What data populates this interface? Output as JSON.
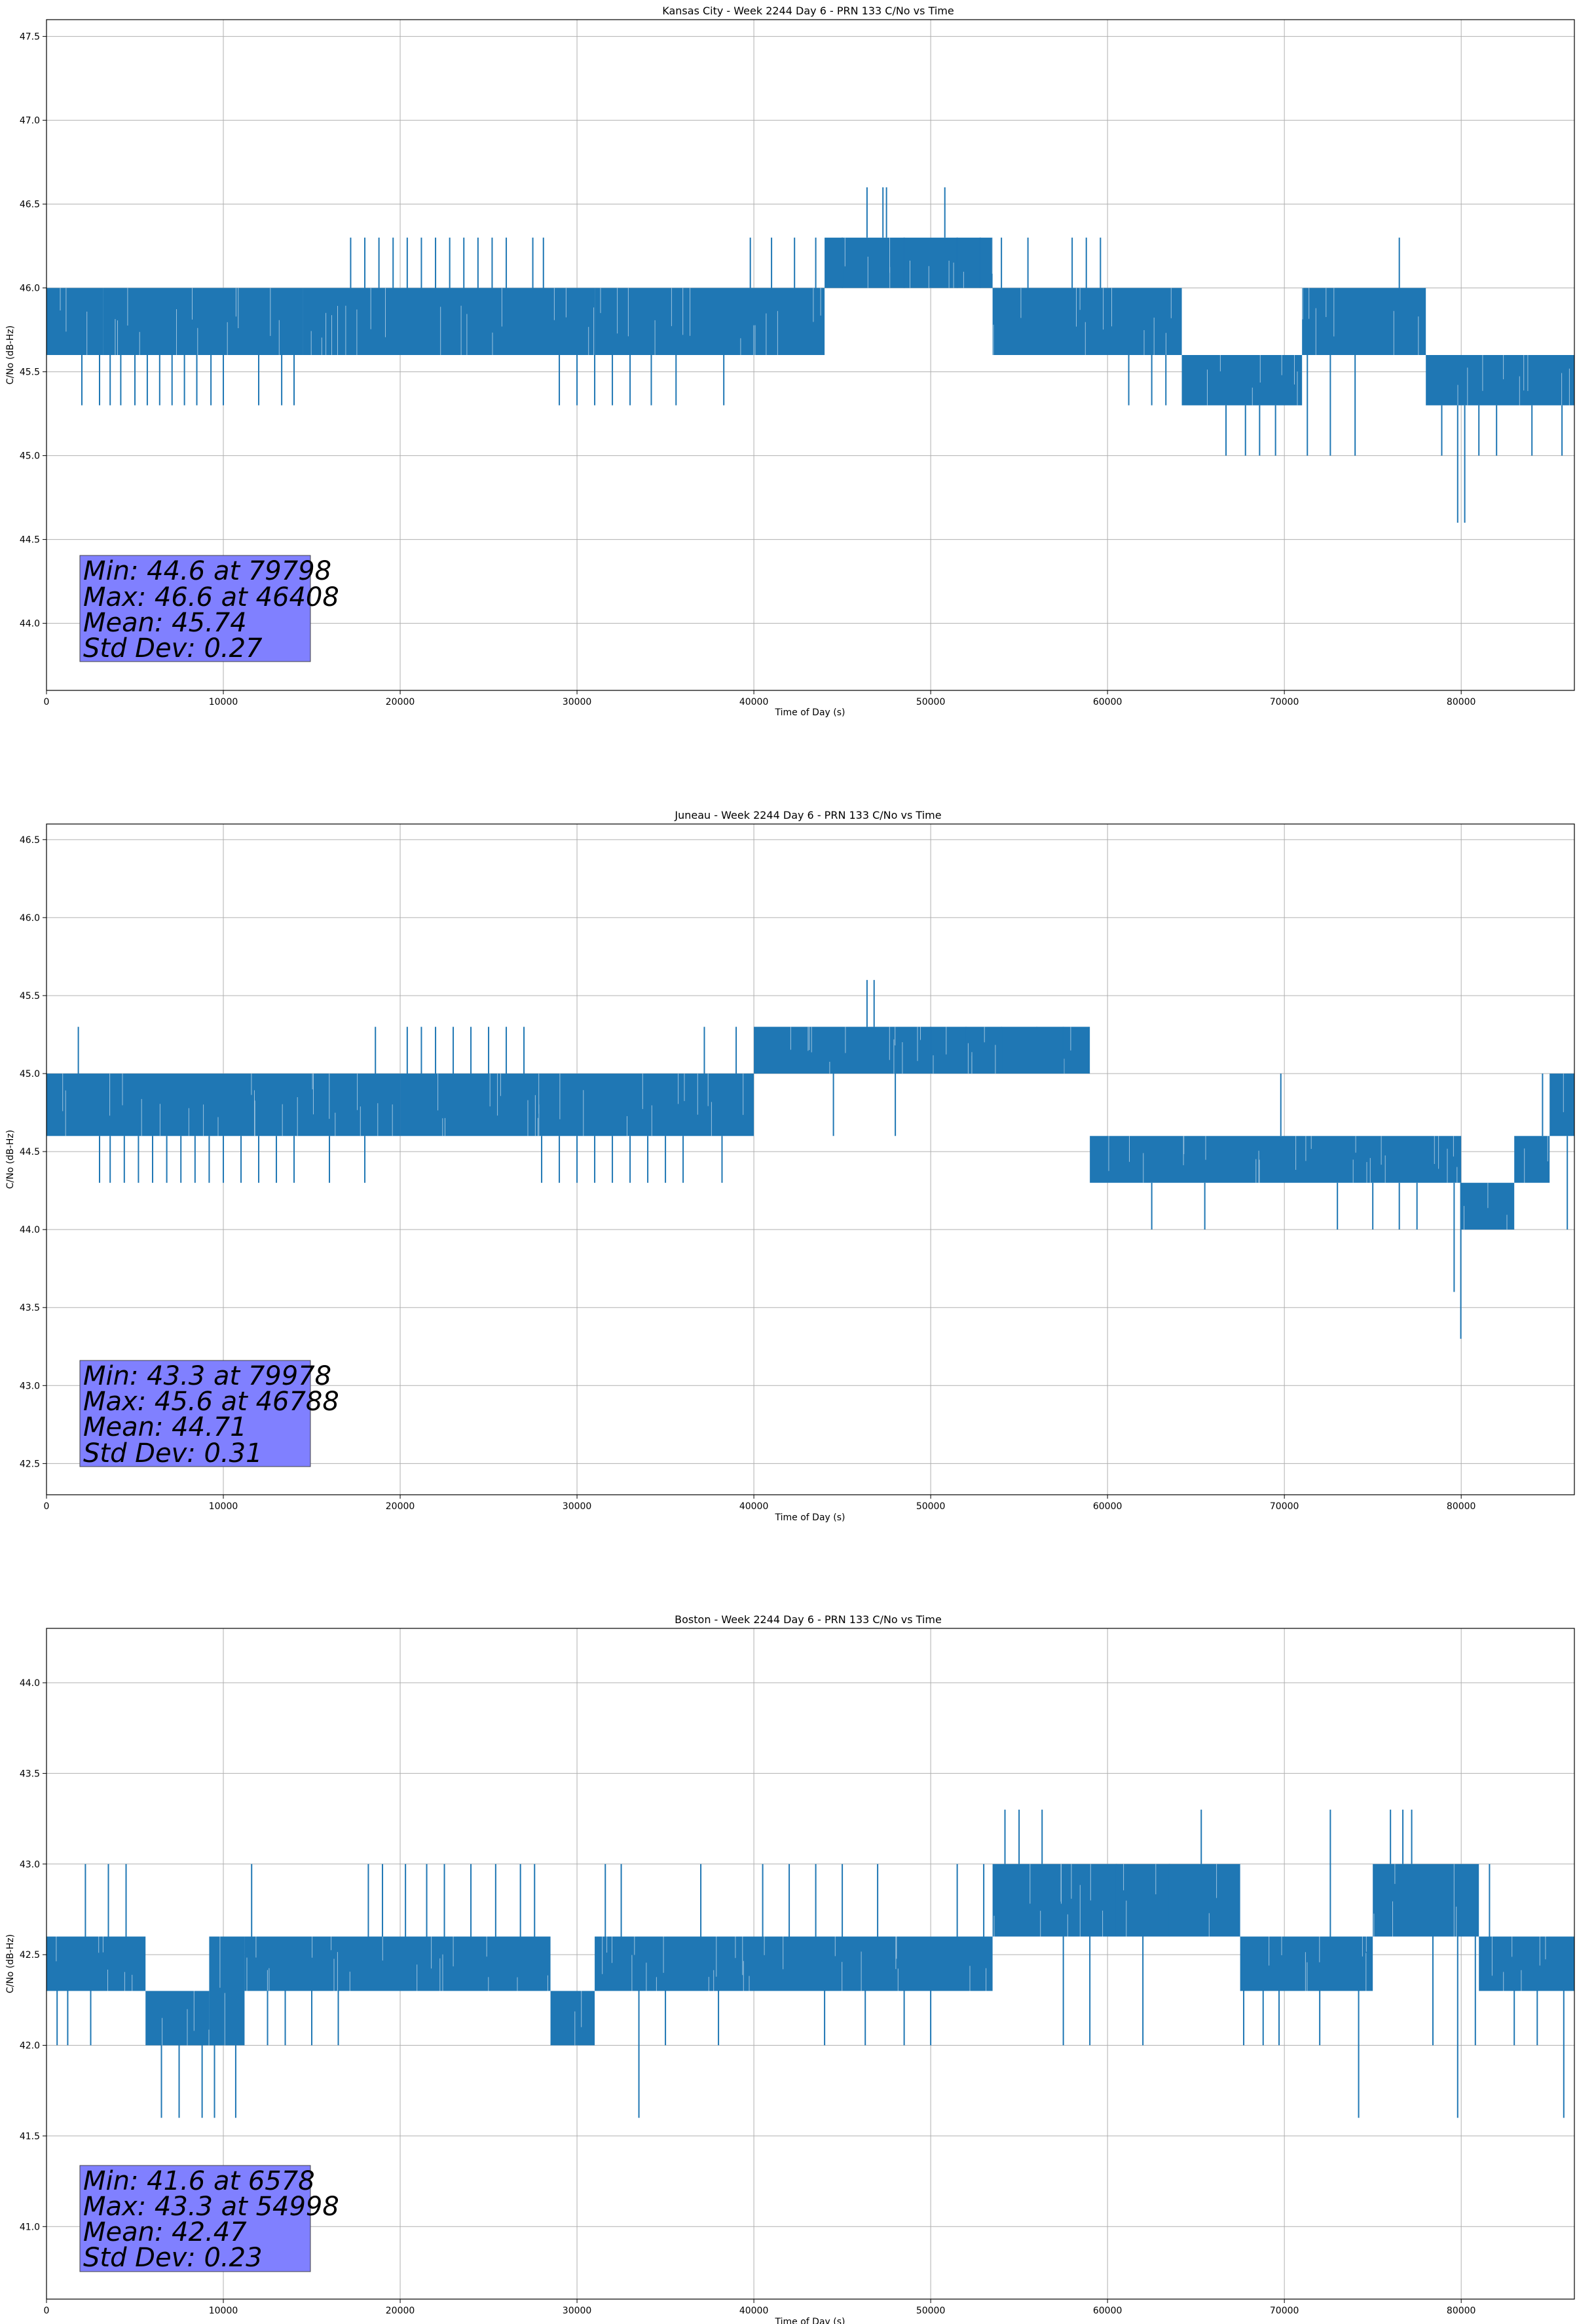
{
  "chart_data": [
    {
      "type": "line",
      "title": "Kansas City - Week 2244 Day 6 - PRN 133 C/No vs Time",
      "xlabel": "Time of Day (s)",
      "ylabel": "C/No (dB-Hz)",
      "xlim": [
        0,
        86400
      ],
      "ylim": [
        43.6,
        47.6
      ],
      "xticks": [
        0,
        10000,
        20000,
        30000,
        40000,
        50000,
        60000,
        70000,
        80000
      ],
      "yticks": [
        44.0,
        44.5,
        45.0,
        45.5,
        46.0,
        46.5,
        47.0,
        47.5
      ],
      "xtick_labels": [
        "0",
        "10000",
        "20000",
        "30000",
        "40000",
        "50000",
        "60000",
        "70000",
        "80000"
      ],
      "ytick_labels": [
        "44.0",
        "44.5",
        "45.0",
        "45.5",
        "46.0",
        "46.5",
        "47.0",
        "47.5"
      ],
      "grid": true,
      "color": "#1f77b4",
      "band_segments": [
        {
          "start": 0,
          "end": 3200,
          "lo": 45.6,
          "hi": 46.0
        },
        {
          "start": 3200,
          "end": 14500,
          "lo": 45.6,
          "hi": 46.0
        },
        {
          "start": 14500,
          "end": 31000,
          "lo": 45.6,
          "hi": 46.0
        },
        {
          "start": 31000,
          "end": 44000,
          "lo": 45.6,
          "hi": 46.0
        },
        {
          "start": 44000,
          "end": 53500,
          "lo": 46.0,
          "hi": 46.3
        },
        {
          "start": 53500,
          "end": 64200,
          "lo": 45.6,
          "hi": 46.0
        },
        {
          "start": 64200,
          "end": 71000,
          "lo": 45.3,
          "hi": 45.6
        },
        {
          "start": 71000,
          "end": 78000,
          "lo": 45.6,
          "hi": 46.0
        },
        {
          "start": 78000,
          "end": 86400,
          "lo": 45.3,
          "hi": 45.6
        }
      ],
      "spikes": [
        {
          "x": 2000,
          "y": 45.3
        },
        {
          "x": 3000,
          "y": 45.3
        },
        {
          "x": 3600,
          "y": 45.3
        },
        {
          "x": 4200,
          "y": 45.3
        },
        {
          "x": 5000,
          "y": 45.3
        },
        {
          "x": 5700,
          "y": 45.3
        },
        {
          "x": 6400,
          "y": 45.3
        },
        {
          "x": 7100,
          "y": 45.3
        },
        {
          "x": 7800,
          "y": 45.3
        },
        {
          "x": 8500,
          "y": 45.3
        },
        {
          "x": 9300,
          "y": 45.3
        },
        {
          "x": 10000,
          "y": 45.3
        },
        {
          "x": 12000,
          "y": 45.3
        },
        {
          "x": 13300,
          "y": 45.3
        },
        {
          "x": 14000,
          "y": 45.3
        },
        {
          "x": 17200,
          "y": 46.3
        },
        {
          "x": 18000,
          "y": 46.3
        },
        {
          "x": 18800,
          "y": 46.3
        },
        {
          "x": 19600,
          "y": 46.3
        },
        {
          "x": 20400,
          "y": 46.3
        },
        {
          "x": 21200,
          "y": 46.3
        },
        {
          "x": 22000,
          "y": 46.3
        },
        {
          "x": 22800,
          "y": 46.3
        },
        {
          "x": 23600,
          "y": 46.3
        },
        {
          "x": 24400,
          "y": 46.3
        },
        {
          "x": 25200,
          "y": 46.3
        },
        {
          "x": 26000,
          "y": 46.3
        },
        {
          "x": 27500,
          "y": 46.3
        },
        {
          "x": 28100,
          "y": 46.3
        },
        {
          "x": 29000,
          "y": 45.3
        },
        {
          "x": 30000,
          "y": 45.3
        },
        {
          "x": 31000,
          "y": 45.3
        },
        {
          "x": 32000,
          "y": 45.3
        },
        {
          "x": 33000,
          "y": 45.3
        },
        {
          "x": 34200,
          "y": 45.3
        },
        {
          "x": 35600,
          "y": 45.3
        },
        {
          "x": 38300,
          "y": 45.3
        },
        {
          "x": 39800,
          "y": 46.3
        },
        {
          "x": 41000,
          "y": 46.3
        },
        {
          "x": 42300,
          "y": 46.3
        },
        {
          "x": 43500,
          "y": 46.3
        },
        {
          "x": 45000,
          "y": 46.3
        },
        {
          "x": 46400,
          "y": 46.6
        },
        {
          "x": 47300,
          "y": 46.6
        },
        {
          "x": 47500,
          "y": 46.6
        },
        {
          "x": 48500,
          "y": 46.3
        },
        {
          "x": 50800,
          "y": 46.6
        },
        {
          "x": 51500,
          "y": 46.3
        },
        {
          "x": 52800,
          "y": 46.3
        },
        {
          "x": 54000,
          "y": 46.3
        },
        {
          "x": 55500,
          "y": 46.3
        },
        {
          "x": 58000,
          "y": 46.3
        },
        {
          "x": 58800,
          "y": 46.3
        },
        {
          "x": 59600,
          "y": 46.3
        },
        {
          "x": 61200,
          "y": 45.3
        },
        {
          "x": 62500,
          "y": 45.3
        },
        {
          "x": 63300,
          "y": 45.3
        },
        {
          "x": 66700,
          "y": 45.0
        },
        {
          "x": 67800,
          "y": 45.0
        },
        {
          "x": 68600,
          "y": 45.0
        },
        {
          "x": 69500,
          "y": 45.0
        },
        {
          "x": 71300,
          "y": 45.0
        },
        {
          "x": 72600,
          "y": 45.0
        },
        {
          "x": 74000,
          "y": 45.0
        },
        {
          "x": 76500,
          "y": 46.3
        },
        {
          "x": 78900,
          "y": 45.0
        },
        {
          "x": 79800,
          "y": 44.6
        },
        {
          "x": 80200,
          "y": 44.6
        },
        {
          "x": 81000,
          "y": 45.0
        },
        {
          "x": 82000,
          "y": 45.0
        },
        {
          "x": 84000,
          "y": 45.0
        },
        {
          "x": 85700,
          "y": 45.0
        }
      ],
      "stats": {
        "min": "Min: 44.6 at 79798",
        "max": "Max: 46.6 at 46408",
        "mean": "Mean: 45.74",
        "std": "Std Dev: 0.27"
      },
      "stats_box_color": "#8080ff"
    },
    {
      "type": "line",
      "title": "Juneau - Week 2244 Day 6 - PRN 133 C/No vs Time",
      "xlabel": "Time of Day (s)",
      "ylabel": "C/No (dB-Hz)",
      "xlim": [
        0,
        86400
      ],
      "ylim": [
        42.3,
        46.6
      ],
      "xticks": [
        0,
        10000,
        20000,
        30000,
        40000,
        50000,
        60000,
        70000,
        80000
      ],
      "yticks": [
        42.5,
        43.0,
        43.5,
        44.0,
        44.5,
        45.0,
        45.5,
        46.0,
        46.5
      ],
      "xtick_labels": [
        "0",
        "10000",
        "20000",
        "30000",
        "40000",
        "50000",
        "60000",
        "70000",
        "80000"
      ],
      "ytick_labels": [
        "42.5",
        "43.0",
        "43.5",
        "44.0",
        "44.5",
        "45.0",
        "45.5",
        "46.0",
        "46.5"
      ],
      "grid": true,
      "color": "#1f77b4",
      "band_segments": [
        {
          "start": 0,
          "end": 20000,
          "lo": 44.6,
          "hi": 45.0
        },
        {
          "start": 20000,
          "end": 40000,
          "lo": 44.6,
          "hi": 45.0
        },
        {
          "start": 40000,
          "end": 59000,
          "lo": 45.0,
          "hi": 45.3
        },
        {
          "start": 59000,
          "end": 80000,
          "lo": 44.3,
          "hi": 44.6
        },
        {
          "start": 80000,
          "end": 83000,
          "lo": 44.0,
          "hi": 44.3
        },
        {
          "start": 83000,
          "end": 85000,
          "lo": 44.3,
          "hi": 44.6
        },
        {
          "start": 85000,
          "end": 86400,
          "lo": 44.6,
          "hi": 45.0
        }
      ],
      "spikes": [
        {
          "x": 1800,
          "y": 45.3
        },
        {
          "x": 3000,
          "y": 44.3
        },
        {
          "x": 3600,
          "y": 44.3
        },
        {
          "x": 4400,
          "y": 44.3
        },
        {
          "x": 5200,
          "y": 44.3
        },
        {
          "x": 6000,
          "y": 44.3
        },
        {
          "x": 6800,
          "y": 44.3
        },
        {
          "x": 7600,
          "y": 44.3
        },
        {
          "x": 8400,
          "y": 44.3
        },
        {
          "x": 9200,
          "y": 44.3
        },
        {
          "x": 10000,
          "y": 44.3
        },
        {
          "x": 11000,
          "y": 44.3
        },
        {
          "x": 12000,
          "y": 44.3
        },
        {
          "x": 13000,
          "y": 44.3
        },
        {
          "x": 14000,
          "y": 44.3
        },
        {
          "x": 16000,
          "y": 44.3
        },
        {
          "x": 18000,
          "y": 44.3
        },
        {
          "x": 18600,
          "y": 45.3
        },
        {
          "x": 20400,
          "y": 45.3
        },
        {
          "x": 21200,
          "y": 45.3
        },
        {
          "x": 22000,
          "y": 45.3
        },
        {
          "x": 23000,
          "y": 45.3
        },
        {
          "x": 24000,
          "y": 45.3
        },
        {
          "x": 25000,
          "y": 45.3
        },
        {
          "x": 26000,
          "y": 45.3
        },
        {
          "x": 27000,
          "y": 45.3
        },
        {
          "x": 28000,
          "y": 44.3
        },
        {
          "x": 29000,
          "y": 44.3
        },
        {
          "x": 30000,
          "y": 44.3
        },
        {
          "x": 31000,
          "y": 44.3
        },
        {
          "x": 32000,
          "y": 44.3
        },
        {
          "x": 33000,
          "y": 44.3
        },
        {
          "x": 34000,
          "y": 44.3
        },
        {
          "x": 35000,
          "y": 44.3
        },
        {
          "x": 36000,
          "y": 44.3
        },
        {
          "x": 37200,
          "y": 45.3
        },
        {
          "x": 38200,
          "y": 44.3
        },
        {
          "x": 39000,
          "y": 45.3
        },
        {
          "x": 44500,
          "y": 44.6
        },
        {
          "x": 46400,
          "y": 45.6
        },
        {
          "x": 46800,
          "y": 45.6
        },
        {
          "x": 48000,
          "y": 44.6
        },
        {
          "x": 50000,
          "y": 45.3
        },
        {
          "x": 52000,
          "y": 45.3
        },
        {
          "x": 54000,
          "y": 45.3
        },
        {
          "x": 56000,
          "y": 45.3
        },
        {
          "x": 57500,
          "y": 45.3
        },
        {
          "x": 60000,
          "y": 44.3
        },
        {
          "x": 62500,
          "y": 44.0
        },
        {
          "x": 65500,
          "y": 44.0
        },
        {
          "x": 69800,
          "y": 45.0
        },
        {
          "x": 73000,
          "y": 44.0
        },
        {
          "x": 75000,
          "y": 44.0
        },
        {
          "x": 76500,
          "y": 44.0
        },
        {
          "x": 77500,
          "y": 44.0
        },
        {
          "x": 79600,
          "y": 43.6
        },
        {
          "x": 79978,
          "y": 43.3
        },
        {
          "x": 81000,
          "y": 44.0
        },
        {
          "x": 82200,
          "y": 44.0
        },
        {
          "x": 83500,
          "y": 44.3
        },
        {
          "x": 84600,
          "y": 45.0
        },
        {
          "x": 86000,
          "y": 44.0
        }
      ],
      "stats": {
        "min": "Min: 43.3 at 79978",
        "max": "Max: 45.6 at 46788",
        "mean": "Mean: 44.71",
        "std": "Std Dev: 0.31"
      },
      "stats_box_color": "#8080ff"
    },
    {
      "type": "line",
      "title": "Boston - Week 2244 Day 6 - PRN 133 C/No vs Time",
      "xlabel": "Time of Day (s)",
      "ylabel": "C/No (dB-Hz)",
      "xlim": [
        0,
        86400
      ],
      "ylim": [
        40.6,
        44.3
      ],
      "xticks": [
        0,
        10000,
        20000,
        30000,
        40000,
        50000,
        60000,
        70000,
        80000
      ],
      "yticks": [
        41.0,
        41.5,
        42.0,
        42.5,
        43.0,
        43.5,
        44.0
      ],
      "xtick_labels": [
        "0",
        "10000",
        "20000",
        "30000",
        "40000",
        "50000",
        "60000",
        "70000",
        "80000"
      ],
      "ytick_labels": [
        "41.0",
        "41.5",
        "42.0",
        "42.5",
        "43.0",
        "43.5",
        "44.0"
      ],
      "grid": true,
      "color": "#1f77b4",
      "band_segments": [
        {
          "start": 0,
          "end": 5600,
          "lo": 42.3,
          "hi": 42.6
        },
        {
          "start": 5600,
          "end": 9200,
          "lo": 42.0,
          "hi": 42.3
        },
        {
          "start": 9200,
          "end": 11200,
          "lo": 42.0,
          "hi": 42.6
        },
        {
          "start": 11200,
          "end": 28500,
          "lo": 42.3,
          "hi": 42.6
        },
        {
          "start": 28500,
          "end": 31000,
          "lo": 42.0,
          "hi": 42.3
        },
        {
          "start": 31000,
          "end": 53500,
          "lo": 42.3,
          "hi": 42.6
        },
        {
          "start": 53500,
          "end": 67500,
          "lo": 42.6,
          "hi": 43.0
        },
        {
          "start": 67500,
          "end": 75000,
          "lo": 42.3,
          "hi": 42.6
        },
        {
          "start": 75000,
          "end": 81000,
          "lo": 42.6,
          "hi": 43.0
        },
        {
          "start": 81000,
          "end": 86400,
          "lo": 42.3,
          "hi": 42.6
        }
      ],
      "spikes": [
        {
          "x": 600,
          "y": 42.0
        },
        {
          "x": 1200,
          "y": 42.0
        },
        {
          "x": 2200,
          "y": 43.0
        },
        {
          "x": 2500,
          "y": 42.0
        },
        {
          "x": 3500,
          "y": 43.0
        },
        {
          "x": 4500,
          "y": 43.0
        },
        {
          "x": 6500,
          "y": 41.6
        },
        {
          "x": 7500,
          "y": 41.6
        },
        {
          "x": 8800,
          "y": 41.6
        },
        {
          "x": 9400,
          "y": 42.0
        },
        {
          "x": 9500,
          "y": 41.6
        },
        {
          "x": 10700,
          "y": 41.6
        },
        {
          "x": 11600,
          "y": 43.0
        },
        {
          "x": 12500,
          "y": 42.0
        },
        {
          "x": 13500,
          "y": 42.0
        },
        {
          "x": 15000,
          "y": 42.0
        },
        {
          "x": 16500,
          "y": 42.0
        },
        {
          "x": 18200,
          "y": 43.0
        },
        {
          "x": 19000,
          "y": 43.0
        },
        {
          "x": 20300,
          "y": 43.0
        },
        {
          "x": 21500,
          "y": 43.0
        },
        {
          "x": 22500,
          "y": 43.0
        },
        {
          "x": 24000,
          "y": 43.0
        },
        {
          "x": 25400,
          "y": 43.0
        },
        {
          "x": 26800,
          "y": 43.0
        },
        {
          "x": 27600,
          "y": 43.0
        },
        {
          "x": 29000,
          "y": 42.0
        },
        {
          "x": 30400,
          "y": 42.0
        },
        {
          "x": 31600,
          "y": 43.0
        },
        {
          "x": 32500,
          "y": 43.0
        },
        {
          "x": 33500,
          "y": 41.6
        },
        {
          "x": 35000,
          "y": 42.0
        },
        {
          "x": 37000,
          "y": 43.0
        },
        {
          "x": 38000,
          "y": 42.0
        },
        {
          "x": 40500,
          "y": 43.0
        },
        {
          "x": 42000,
          "y": 43.0
        },
        {
          "x": 43500,
          "y": 43.0
        },
        {
          "x": 44000,
          "y": 42.0
        },
        {
          "x": 45000,
          "y": 43.0
        },
        {
          "x": 46300,
          "y": 42.0
        },
        {
          "x": 47000,
          "y": 43.0
        },
        {
          "x": 48500,
          "y": 42.0
        },
        {
          "x": 50000,
          "y": 42.0
        },
        {
          "x": 51500,
          "y": 43.0
        },
        {
          "x": 53000,
          "y": 43.0
        },
        {
          "x": 54200,
          "y": 43.3
        },
        {
          "x": 54998,
          "y": 43.3
        },
        {
          "x": 56300,
          "y": 43.3
        },
        {
          "x": 57500,
          "y": 42.0
        },
        {
          "x": 59000,
          "y": 42.0
        },
        {
          "x": 60500,
          "y": 43.0
        },
        {
          "x": 62000,
          "y": 42.0
        },
        {
          "x": 63500,
          "y": 43.0
        },
        {
          "x": 65300,
          "y": 43.3
        },
        {
          "x": 67700,
          "y": 42.0
        },
        {
          "x": 68800,
          "y": 42.0
        },
        {
          "x": 69700,
          "y": 42.0
        },
        {
          "x": 72000,
          "y": 42.0
        },
        {
          "x": 72600,
          "y": 43.3
        },
        {
          "x": 74200,
          "y": 41.6
        },
        {
          "x": 76000,
          "y": 43.3
        },
        {
          "x": 76700,
          "y": 43.3
        },
        {
          "x": 77200,
          "y": 43.3
        },
        {
          "x": 78400,
          "y": 42.0
        },
        {
          "x": 79800,
          "y": 41.6
        },
        {
          "x": 80800,
          "y": 42.0
        },
        {
          "x": 81600,
          "y": 43.0
        },
        {
          "x": 83000,
          "y": 42.0
        },
        {
          "x": 84300,
          "y": 42.0
        },
        {
          "x": 85800,
          "y": 41.6
        }
      ],
      "stats": {
        "min": "Min: 41.6 at 6578",
        "max": "Max: 43.3 at 54998",
        "mean": "Mean: 42.47",
        "std": "Std Dev: 0.23"
      },
      "stats_box_color": "#8080ff"
    }
  ]
}
